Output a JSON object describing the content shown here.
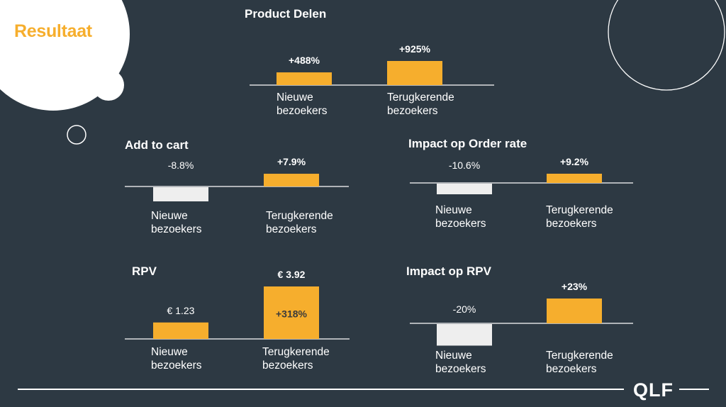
{
  "slide": {
    "title": "Resultaat",
    "logo_text": "QLF"
  },
  "colors": {
    "background": "#2d3943",
    "accent": "#f6ae2d",
    "negative_bar": "#eeeeee",
    "axis": "#ffffff"
  },
  "chart_data": [
    {
      "id": "product-delen",
      "type": "bar",
      "title": "Product Delen",
      "categories": [
        "Nieuwe bezoekers",
        "Terugkerende bezoekers"
      ],
      "values": [
        488,
        925
      ],
      "value_labels": [
        "+488%",
        "+925%"
      ],
      "value_label_style": [
        "bold",
        "bold"
      ],
      "bar_colors": [
        "#f6ae2d",
        "#f6ae2d"
      ],
      "inner_labels": [
        "",
        ""
      ]
    },
    {
      "id": "add-to-cart",
      "type": "bar",
      "title": "Add to cart",
      "categories": [
        "Nieuwe bezoekers",
        "Terugkerende bezoekers"
      ],
      "values": [
        -8.8,
        7.9
      ],
      "value_labels": [
        "-8.8%",
        "+7.9%"
      ],
      "value_label_style": [
        "plain",
        "bold"
      ],
      "bar_colors": [
        "#eeeeee",
        "#f6ae2d"
      ],
      "inner_labels": [
        "",
        ""
      ]
    },
    {
      "id": "impact-order-rate",
      "type": "bar",
      "title": "Impact op Order rate",
      "categories": [
        "Nieuwe bezoekers",
        "Terugkerende bezoekers"
      ],
      "values": [
        -10.6,
        9.2
      ],
      "value_labels": [
        "-10.6%",
        "+9.2%"
      ],
      "value_label_style": [
        "plain",
        "bold"
      ],
      "bar_colors": [
        "#eeeeee",
        "#f6ae2d"
      ],
      "inner_labels": [
        "",
        ""
      ]
    },
    {
      "id": "rpv",
      "type": "bar",
      "title": "RPV",
      "categories": [
        "Nieuwe bezoekers",
        "Terugkerende bezoekers"
      ],
      "values": [
        1.23,
        3.92
      ],
      "value_labels": [
        "€ 1.23",
        "€ 3.92"
      ],
      "value_label_style": [
        "plain",
        "bold"
      ],
      "bar_colors": [
        "#f6ae2d",
        "#f6ae2d"
      ],
      "inner_labels": [
        "",
        "+318%"
      ]
    },
    {
      "id": "impact-rpv",
      "type": "bar",
      "title": "Impact op RPV",
      "categories": [
        "Nieuwe bezoekers",
        "Terugkerende bezoekers"
      ],
      "values": [
        -20,
        23
      ],
      "value_labels": [
        "-20%",
        "+23%"
      ],
      "value_label_style": [
        "plain",
        "bold"
      ],
      "bar_colors": [
        "#eeeeee",
        "#f6ae2d"
      ],
      "inner_labels": [
        "",
        ""
      ]
    }
  ]
}
